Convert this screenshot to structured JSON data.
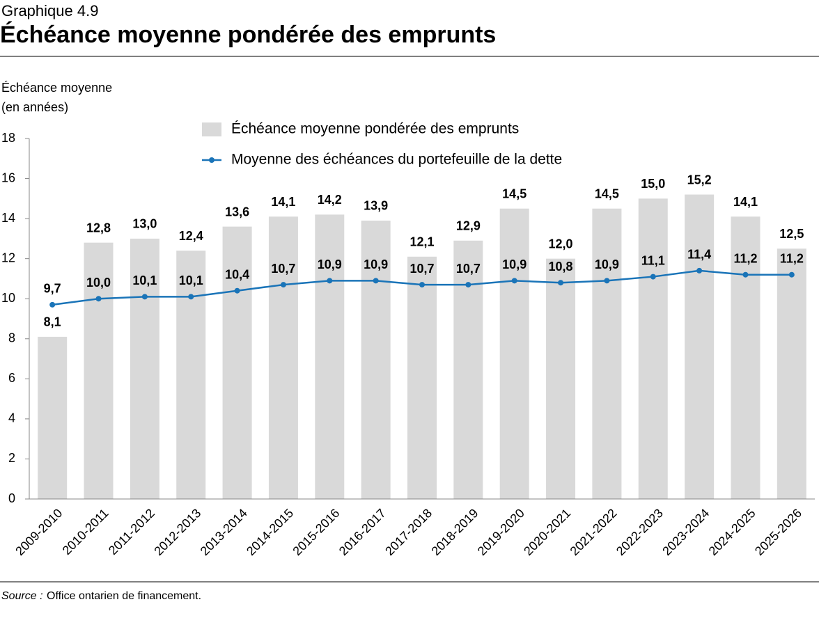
{
  "chart_data": {
    "type": "bar",
    "label": "Graphique 4.9",
    "title": "Échéance moyenne pondérée des emprunts",
    "y_label": [
      "Échéance moyenne",
      "(en années)"
    ],
    "categories": [
      "2009-2010",
      "2010-2011",
      "2011-2012",
      "2012-2013",
      "2013-2014",
      "2014-2015",
      "2015-2016",
      "2016-2017",
      "2017-2018",
      "2018-2019",
      "2019-2020",
      "2020-2021",
      "2021-2022",
      "2022-2023",
      "2023-2024",
      "2024-2025",
      "2025-2026"
    ],
    "series": [
      {
        "name": "Échéance moyenne pondérée des emprunts",
        "type": "bar",
        "color": "#d9d9d9",
        "values": [
          8.1,
          12.8,
          13.0,
          12.4,
          13.6,
          14.1,
          14.2,
          13.9,
          12.1,
          12.9,
          14.5,
          12.0,
          14.5,
          15.0,
          15.2,
          14.1,
          12.5
        ],
        "value_labels": [
          "8,1",
          "12,8",
          "13,0",
          "12,4",
          "13,6",
          "14,1",
          "14,2",
          "13,9",
          "12,1",
          "12,9",
          "14,5",
          "12,0",
          "14,5",
          "15,0",
          "15,2",
          "14,1",
          "12,5"
        ]
      },
      {
        "name": "Moyenne des échéances du portefeuille de la dette",
        "type": "line",
        "color": "#1a74b8",
        "values": [
          9.7,
          10.0,
          10.1,
          10.1,
          10.4,
          10.7,
          10.9,
          10.9,
          10.7,
          10.7,
          10.9,
          10.8,
          10.9,
          11.1,
          11.4,
          11.2,
          11.2
        ],
        "value_labels": [
          "9,7",
          "10,0",
          "10,1",
          "10,1",
          "10,4",
          "10,7",
          "10,9",
          "10,9",
          "10,7",
          "10,7",
          "10,9",
          "10,8",
          "10,9",
          "11,1",
          "11,4",
          "11,2",
          "11,2"
        ]
      }
    ],
    "ylim": [
      0,
      18
    ],
    "yticks": [
      0,
      2,
      4,
      6,
      8,
      10,
      12,
      14,
      16,
      18
    ],
    "grid": false,
    "source_label": "Source :",
    "source": "Office ontarien de financement."
  }
}
